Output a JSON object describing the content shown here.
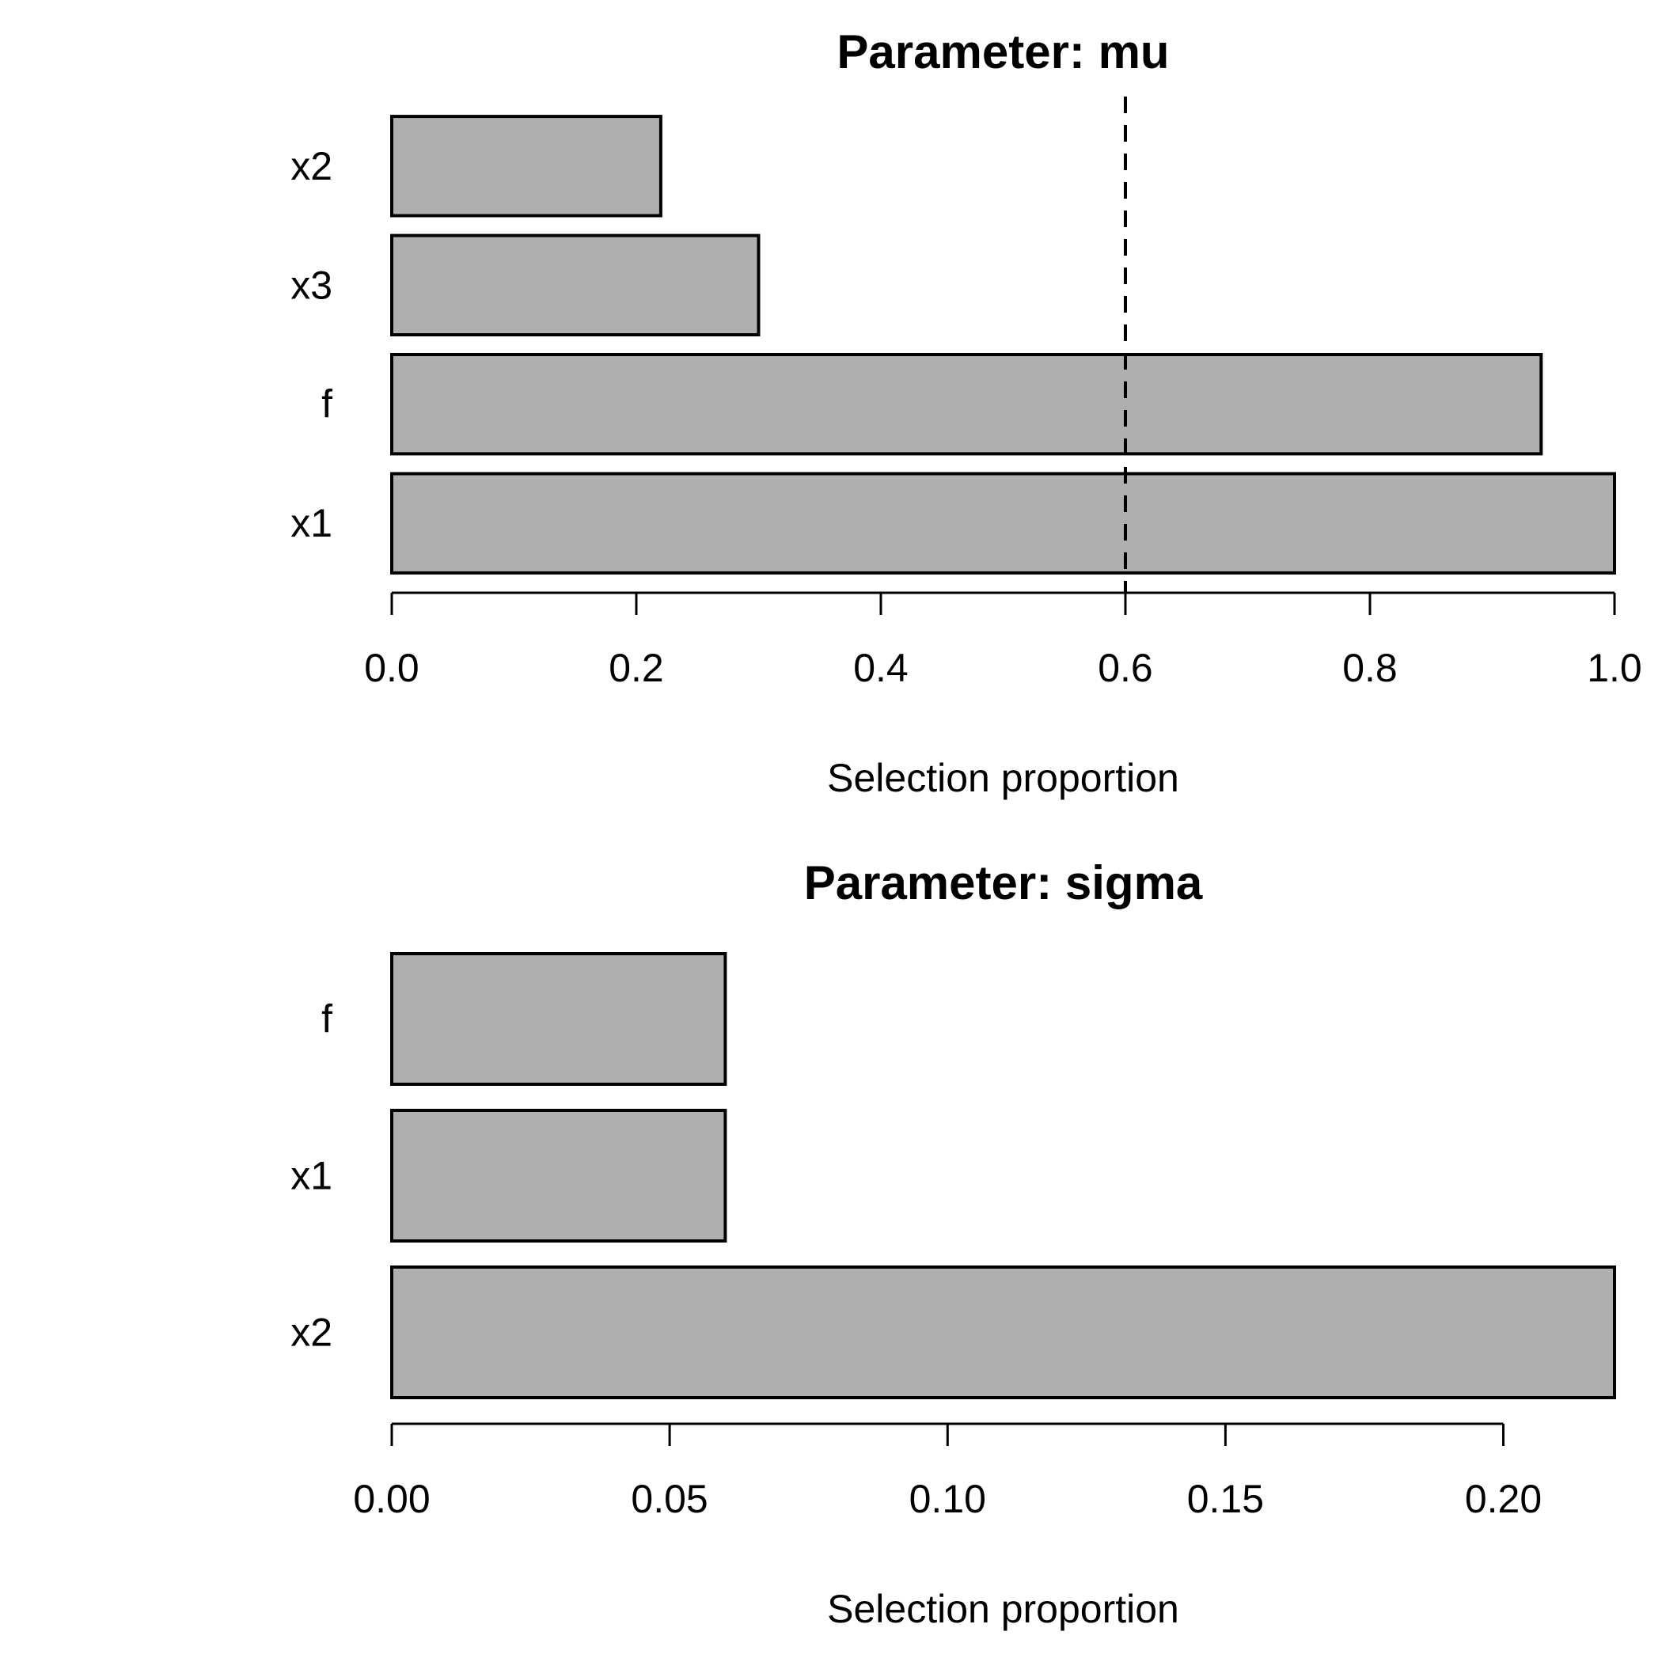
{
  "page": {
    "background": "#ffffff",
    "text_color": "#000000"
  },
  "chart_data": [
    {
      "type": "bar",
      "orientation": "horizontal",
      "title": "Parameter: mu",
      "xlabel": "Selection proportion",
      "categories_top_to_bottom": [
        "x2",
        "x3",
        "f",
        "x1"
      ],
      "values": [
        0.22,
        0.3,
        0.94,
        1.0
      ],
      "xlim": [
        0,
        1.0
      ],
      "xticks": [
        0.0,
        0.2,
        0.4,
        0.6,
        0.8,
        1.0
      ],
      "xtick_labels": [
        "0.0",
        "0.2",
        "0.4",
        "0.6",
        "0.8",
        "1.0"
      ],
      "reference_line": {
        "value": 0.6,
        "style": "dashed",
        "color": "#000000"
      },
      "bar_fill": "#AFAFAF",
      "bar_stroke": "#000000",
      "grid": false,
      "legend": null
    },
    {
      "type": "bar",
      "orientation": "horizontal",
      "title": "Parameter: sigma",
      "xlabel": "Selection proportion",
      "categories_top_to_bottom": [
        "f",
        "x1",
        "x2"
      ],
      "values": [
        0.06,
        0.06,
        0.22
      ],
      "xlim": [
        0,
        0.22
      ],
      "xticks": [
        0.0,
        0.05,
        0.1,
        0.15,
        0.2
      ],
      "xtick_labels": [
        "0.00",
        "0.05",
        "0.10",
        "0.15",
        "0.20"
      ],
      "reference_line": null,
      "bar_fill": "#AFAFAF",
      "bar_stroke": "#000000",
      "grid": false,
      "legend": null
    }
  ]
}
